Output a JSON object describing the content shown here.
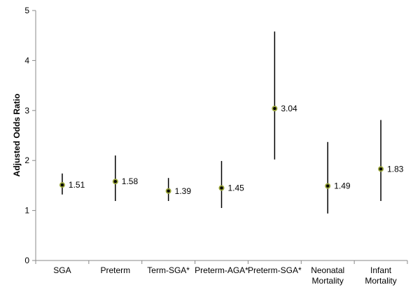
{
  "chart_data": {
    "type": "scatter",
    "title": "",
    "ylabel": "Adjusted Odds Ratio",
    "xlabel": "",
    "ylim": [
      0,
      5
    ],
    "yticks": [
      0,
      1,
      2,
      3,
      4,
      5
    ],
    "grid": false,
    "legend": "none",
    "marker_color": "#9aa63a",
    "marker_edge_color": "#000000",
    "error_bar_color": "#000000",
    "categories": [
      {
        "lines": [
          "SGA"
        ]
      },
      {
        "lines": [
          "Preterm"
        ]
      },
      {
        "lines": [
          "Term-SGA*"
        ]
      },
      {
        "lines": [
          "Preterm-AGA*"
        ]
      },
      {
        "lines": [
          "Preterm-SGA*"
        ]
      },
      {
        "lines": [
          "Neonatal",
          "Mortality"
        ]
      },
      {
        "lines": [
          "Infant",
          "Mortality"
        ]
      }
    ],
    "points": [
      {
        "value": 1.51,
        "label": "1.51",
        "low": 1.32,
        "high": 1.74
      },
      {
        "value": 1.58,
        "label": "1.58",
        "low": 1.19,
        "high": 2.1
      },
      {
        "value": 1.39,
        "label": "1.39",
        "low": 1.19,
        "high": 1.65
      },
      {
        "value": 1.45,
        "label": "1.45",
        "low": 1.05,
        "high": 1.99
      },
      {
        "value": 3.04,
        "label": "3.04",
        "low": 2.02,
        "high": 4.58
      },
      {
        "value": 1.49,
        "label": "1.49",
        "low": 0.94,
        "high": 2.37
      },
      {
        "value": 1.83,
        "label": "1.83",
        "low": 1.19,
        "high": 2.81
      }
    ]
  }
}
